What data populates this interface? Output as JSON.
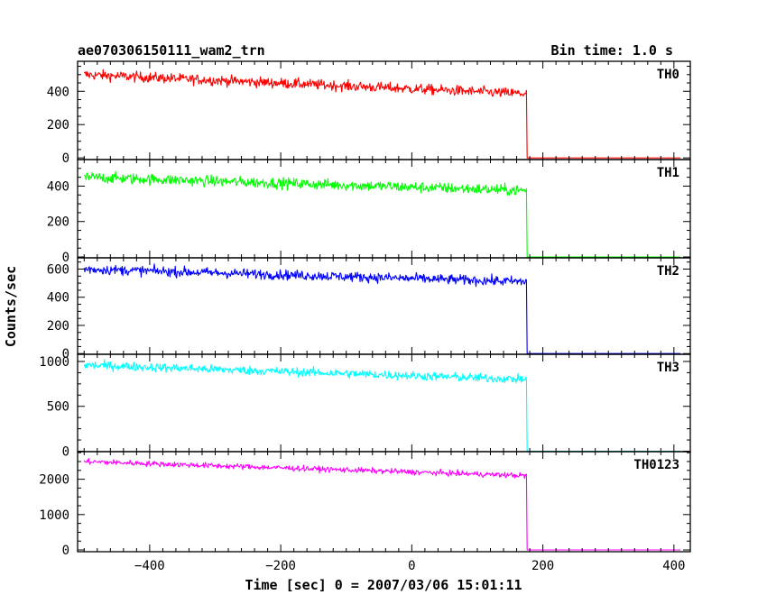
{
  "header": {
    "title": "ae070306150111_wam2_trn",
    "bin_time": "Bin time: 1.0 s"
  },
  "chart_data": {
    "type": "line",
    "title": "ae070306150111_wam2_trn",
    "xlabel": "Time [sec] 0 = 2007/03/06 15:01:11",
    "ylabel": "Counts/sec",
    "xlim": [
      -510,
      425
    ],
    "x_ticks": [
      -400,
      -200,
      0,
      200,
      400
    ],
    "x_tick_labels": [
      "−400",
      "−200",
      "0",
      "200",
      "400"
    ],
    "grid": false,
    "step_time": 175,
    "panels": [
      {
        "name": "TH0",
        "color": "#ff0000",
        "ylim": [
          -10,
          580
        ],
        "y_ticks": [
          0,
          200,
          400
        ],
        "y_tick_labels": [
          "0",
          "200",
          "400"
        ],
        "start_value": 500,
        "end_value": 385,
        "noise": 22
      },
      {
        "name": "TH1",
        "color": "#00ff00",
        "ylim": [
          -5,
          550
        ],
        "y_ticks": [
          0,
          200,
          400
        ],
        "y_tick_labels": [
          "0",
          "200",
          "400"
        ],
        "start_value": 450,
        "end_value": 375,
        "noise": 22
      },
      {
        "name": "TH2",
        "color": "#0000ff",
        "ylim": [
          -5,
          680
        ],
        "y_ticks": [
          0,
          200,
          400,
          600
        ],
        "y_tick_labels": [
          "0",
          "200",
          "400",
          "600"
        ],
        "start_value": 600,
        "end_value": 510,
        "noise": 25
      },
      {
        "name": "TH3",
        "color": "#00ffff",
        "ylim": [
          -5,
          1080
        ],
        "y_ticks": [
          0,
          500,
          1000
        ],
        "y_tick_labels": [
          "0",
          "500",
          "1000"
        ],
        "start_value": 960,
        "end_value": 800,
        "noise": 35
      },
      {
        "name": "TH0123",
        "color": "#ff00ff",
        "ylim": [
          -50,
          2780
        ],
        "y_ticks": [
          0,
          1000,
          2000
        ],
        "y_tick_labels": [
          "0",
          "1000",
          "2000"
        ],
        "start_value": 2500,
        "end_value": 2100,
        "noise": 55
      }
    ]
  }
}
